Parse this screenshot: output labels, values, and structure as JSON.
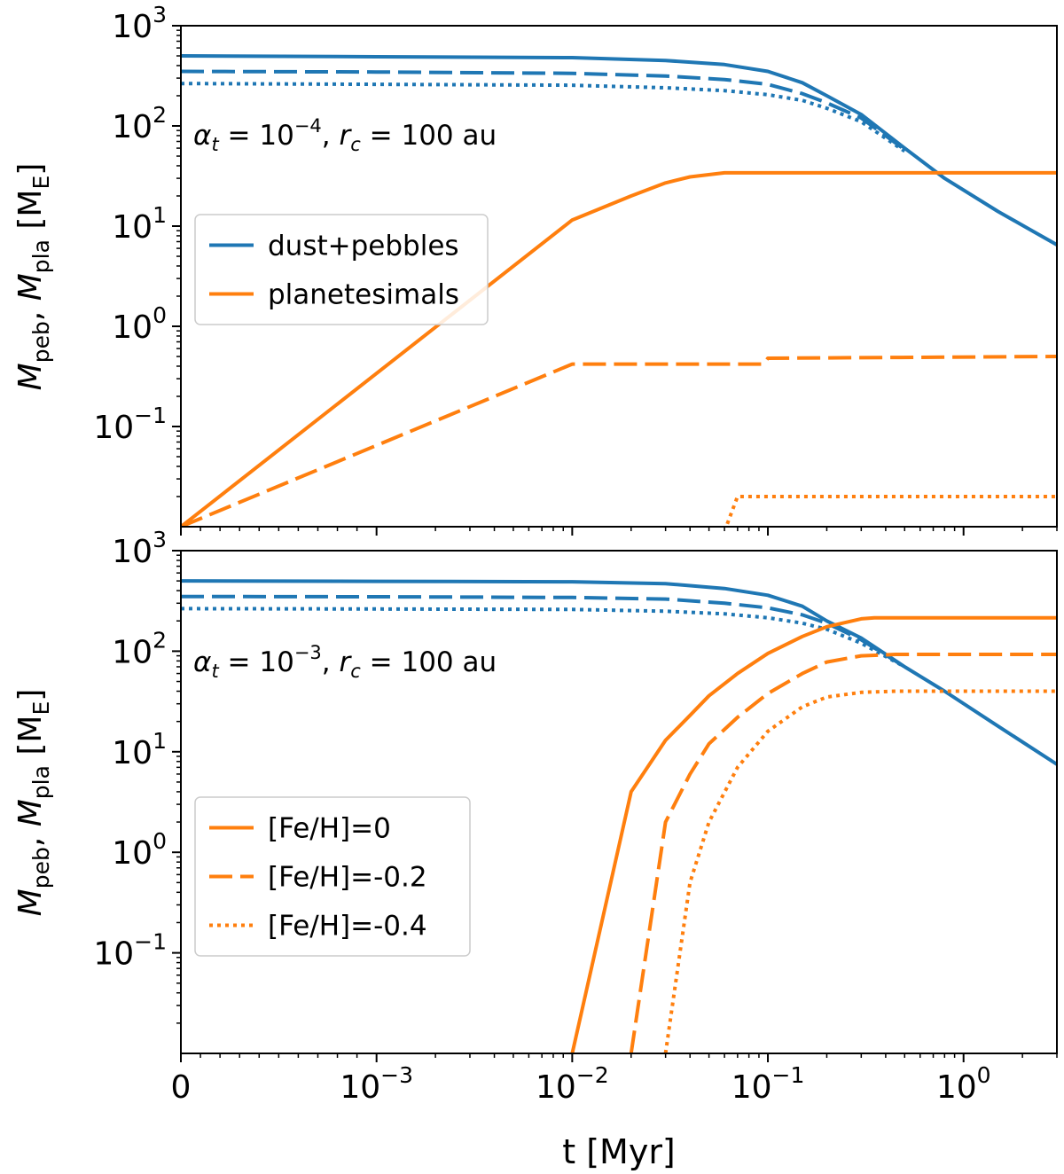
{
  "figure": {
    "xlabel": "t [Myr]",
    "ylabel_html": "M_peb, M_pla [M_E]"
  },
  "chart_data": [
    {
      "type": "line",
      "panel": "top",
      "annotation": "α_t = 10^−4, r_c = 100 au",
      "annotation_parts": {
        "alpha": "α",
        "alpha_sub": "t",
        "eq1": " = 10",
        "exp": "−4",
        "comma": ", ",
        "r": "r",
        "r_sub": "c",
        "eq2": " = 100 au"
      },
      "xscale": "symlog",
      "linthresh": 0.001,
      "xlim": [
        0,
        3
      ],
      "xticks": [
        {
          "value": 0,
          "label": "0"
        },
        {
          "value": 0.001,
          "label": "10",
          "exp": "−3"
        },
        {
          "value": 0.01,
          "label": "10",
          "exp": "−2"
        },
        {
          "value": 0.1,
          "label": "10",
          "exp": "−1"
        },
        {
          "value": 1,
          "label": "10",
          "exp": "0"
        }
      ],
      "yscale": "log",
      "ylim": [
        0.01,
        1000
      ],
      "yticks": [
        {
          "value": 1000,
          "label": "10",
          "exp": "3"
        },
        {
          "value": 100,
          "label": "10",
          "exp": "2"
        },
        {
          "value": 10,
          "label": "10",
          "exp": "1"
        },
        {
          "value": 1,
          "label": "10",
          "exp": "0"
        },
        {
          "value": 0.1,
          "label": "10",
          "exp": "−1"
        }
      ],
      "legend": {
        "placement": "center-left",
        "entries": [
          {
            "label": "dust+pebbles",
            "color": "#1f77b4",
            "style": "solid"
          },
          {
            "label": "planetesimals",
            "color": "#ff7f0e",
            "style": "solid"
          }
        ]
      },
      "series": [
        {
          "kind": "dust+pebbles",
          "metallicity": "[Fe/H]=0",
          "color": "#1f77b4",
          "style": "solid",
          "points": [
            [
              0,
              500
            ],
            [
              0.001,
              490
            ],
            [
              0.01,
              480
            ],
            [
              0.03,
              450
            ],
            [
              0.06,
              410
            ],
            [
              0.1,
              350
            ],
            [
              0.15,
              270
            ],
            [
              0.2,
              200
            ],
            [
              0.3,
              130
            ],
            [
              0.5,
              60
            ],
            [
              0.8,
              30
            ],
            [
              1.5,
              14
            ],
            [
              3,
              6.5
            ]
          ]
        },
        {
          "kind": "dust+pebbles",
          "metallicity": "[Fe/H]=-0.2",
          "color": "#1f77b4",
          "style": "dashed",
          "points": [
            [
              0,
              350
            ],
            [
              0.001,
              345
            ],
            [
              0.01,
              335
            ],
            [
              0.03,
              315
            ],
            [
              0.06,
              290
            ],
            [
              0.1,
              260
            ],
            [
              0.15,
              210
            ],
            [
              0.2,
              170
            ],
            [
              0.3,
              120
            ],
            [
              0.5,
              58
            ]
          ]
        },
        {
          "kind": "dust+pebbles",
          "metallicity": "[Fe/H]=-0.4",
          "color": "#1f77b4",
          "style": "dotted",
          "points": [
            [
              0,
              265
            ],
            [
              0.001,
              260
            ],
            [
              0.01,
              255
            ],
            [
              0.03,
              240
            ],
            [
              0.06,
              225
            ],
            [
              0.1,
              205
            ],
            [
              0.15,
              180
            ],
            [
              0.2,
              150
            ],
            [
              0.3,
              110
            ],
            [
              0.5,
              56
            ]
          ]
        },
        {
          "kind": "planetesimals",
          "metallicity": "[Fe/H]=0",
          "color": "#ff7f0e",
          "style": "solid",
          "points": [
            [
              0,
              0.01
            ],
            [
              0.01,
              11.5
            ],
            [
              0.02,
              20
            ],
            [
              0.03,
              27
            ],
            [
              0.04,
              31
            ],
            [
              0.06,
              34
            ],
            [
              3,
              34
            ]
          ]
        },
        {
          "kind": "planetesimals",
          "metallicity": "[Fe/H]=-0.2",
          "color": "#ff7f0e",
          "style": "dashed",
          "points": [
            [
              0,
              0.01
            ],
            [
              0.01,
              0.42
            ],
            [
              0.095,
              0.42
            ],
            [
              0.1,
              0.48
            ],
            [
              3,
              0.5
            ]
          ]
        },
        {
          "kind": "planetesimals",
          "metallicity": "[Fe/H]=-0.4",
          "color": "#ff7f0e",
          "style": "dotted",
          "points": [
            [
              0.06,
              0.009
            ],
            [
              0.07,
              0.02
            ],
            [
              3,
              0.02
            ]
          ]
        }
      ]
    },
    {
      "type": "line",
      "panel": "bottom",
      "annotation": "α_t = 10^−3, r_c = 100 au",
      "annotation_parts": {
        "alpha": "α",
        "alpha_sub": "t",
        "eq1": " = 10",
        "exp": "−3",
        "comma": ", ",
        "r": "r",
        "r_sub": "c",
        "eq2": " = 100 au"
      },
      "xscale": "symlog",
      "linthresh": 0.001,
      "xlim": [
        0,
        3
      ],
      "xticks": [
        {
          "value": 0,
          "label": "0"
        },
        {
          "value": 0.001,
          "label": "10",
          "exp": "−3"
        },
        {
          "value": 0.01,
          "label": "10",
          "exp": "−2"
        },
        {
          "value": 0.1,
          "label": "10",
          "exp": "−1"
        },
        {
          "value": 1,
          "label": "10",
          "exp": "0"
        }
      ],
      "yscale": "log",
      "ylim": [
        0.01,
        1000
      ],
      "yticks": [
        {
          "value": 1000,
          "label": "10",
          "exp": "3"
        },
        {
          "value": 100,
          "label": "10",
          "exp": "2"
        },
        {
          "value": 10,
          "label": "10",
          "exp": "1"
        },
        {
          "value": 1,
          "label": "10",
          "exp": "0"
        },
        {
          "value": 0.1,
          "label": "10",
          "exp": "−1"
        }
      ],
      "legend": {
        "placement": "lower-left",
        "entries": [
          {
            "label": "[Fe/H]=0",
            "color": "#ff7f0e",
            "style": "solid"
          },
          {
            "label": "[Fe/H]=-0.2",
            "color": "#ff7f0e",
            "style": "dashed"
          },
          {
            "label": "[Fe/H]=-0.4",
            "color": "#ff7f0e",
            "style": "dotted"
          }
        ]
      },
      "series": [
        {
          "kind": "dust+pebbles",
          "metallicity": "[Fe/H]=0",
          "color": "#1f77b4",
          "style": "solid",
          "points": [
            [
              0,
              500
            ],
            [
              0.001,
              495
            ],
            [
              0.01,
              490
            ],
            [
              0.03,
              470
            ],
            [
              0.06,
              420
            ],
            [
              0.1,
              360
            ],
            [
              0.15,
              280
            ],
            [
              0.2,
              200
            ],
            [
              0.3,
              135
            ],
            [
              0.5,
              70
            ],
            [
              0.8,
              40
            ],
            [
              1.5,
              18
            ],
            [
              3,
              7.5
            ]
          ]
        },
        {
          "kind": "dust+pebbles",
          "metallicity": "[Fe/H]=-0.2",
          "color": "#1f77b4",
          "style": "dashed",
          "points": [
            [
              0,
              350
            ],
            [
              0.001,
              348
            ],
            [
              0.01,
              342
            ],
            [
              0.03,
              330
            ],
            [
              0.06,
              300
            ],
            [
              0.1,
              270
            ],
            [
              0.15,
              230
            ],
            [
              0.2,
              190
            ],
            [
              0.3,
              130
            ],
            [
              0.5,
              70
            ]
          ]
        },
        {
          "kind": "dust+pebbles",
          "metallicity": "[Fe/H]=-0.4",
          "color": "#1f77b4",
          "style": "dotted",
          "points": [
            [
              0,
              265
            ],
            [
              0.001,
              263
            ],
            [
              0.01,
              260
            ],
            [
              0.03,
              250
            ],
            [
              0.06,
              235
            ],
            [
              0.1,
              215
            ],
            [
              0.15,
              190
            ],
            [
              0.2,
              165
            ],
            [
              0.3,
              120
            ],
            [
              0.5,
              70
            ]
          ]
        },
        {
          "kind": "planetesimals",
          "metallicity": "[Fe/H]=0",
          "color": "#ff7f0e",
          "style": "solid",
          "points": [
            [
              0.01,
              0.01
            ],
            [
              0.02,
              4
            ],
            [
              0.03,
              13
            ],
            [
              0.04,
              23
            ],
            [
              0.05,
              36
            ],
            [
              0.07,
              60
            ],
            [
              0.1,
              95
            ],
            [
              0.15,
              140
            ],
            [
              0.2,
              175
            ],
            [
              0.3,
              210
            ],
            [
              0.35,
              215
            ],
            [
              3,
              215
            ]
          ]
        },
        {
          "kind": "planetesimals",
          "metallicity": "[Fe/H]=-0.2",
          "color": "#ff7f0e",
          "style": "dashed",
          "points": [
            [
              0.02,
              0.01
            ],
            [
              0.03,
              2
            ],
            [
              0.04,
              6
            ],
            [
              0.05,
              12
            ],
            [
              0.07,
              22
            ],
            [
              0.1,
              38
            ],
            [
              0.15,
              60
            ],
            [
              0.2,
              78
            ],
            [
              0.3,
              90
            ],
            [
              0.45,
              93
            ],
            [
              3,
              93
            ]
          ]
        },
        {
          "kind": "planetesimals",
          "metallicity": "[Fe/H]=-0.4",
          "color": "#ff7f0e",
          "style": "dotted",
          "points": [
            [
              0.03,
              0.01
            ],
            [
              0.04,
              0.5
            ],
            [
              0.05,
              2
            ],
            [
              0.07,
              7
            ],
            [
              0.1,
              16
            ],
            [
              0.15,
              28
            ],
            [
              0.2,
              35
            ],
            [
              0.3,
              39
            ],
            [
              0.45,
              40
            ],
            [
              3,
              40
            ]
          ]
        }
      ]
    }
  ]
}
